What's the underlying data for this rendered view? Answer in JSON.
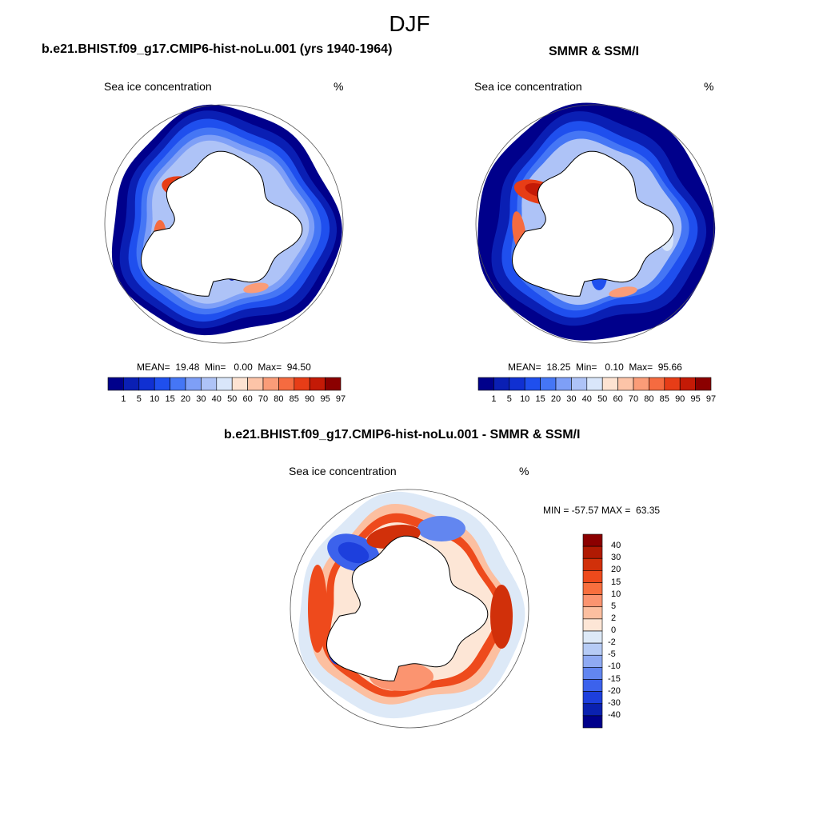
{
  "figure": {
    "title": "DJF"
  },
  "panels": [
    {
      "id": "model",
      "title": "b.e21.BHIST.f09_g17.CMIP6-hist-noLu.001 (yrs 1940-1964)",
      "subtitle_left": "Sea ice concentration",
      "subtitle_right": "%",
      "stats_text": "MEAN=  19.48  Min=   0.00  Max=  94.50"
    },
    {
      "id": "obs",
      "title": "SMMR & SSM/I",
      "subtitle_left": "Sea ice concentration",
      "subtitle_right": "%",
      "stats_text": "MEAN=  18.25  Min=   0.10  Max=  95.66"
    },
    {
      "id": "diff",
      "title": "b.e21.BHIST.f09_g17.CMIP6-hist-noLu.001 - SMMR & SSM/I",
      "subtitle_left": "Sea ice concentration",
      "subtitle_right": "%",
      "stats_text": "MIN = -57.57 MAX =  63.35"
    }
  ],
  "chart_data": [
    {
      "type": "map",
      "title": "b.e21.BHIST.f09_g17.CMIP6-hist-noLu.001 (yrs 1940-1964)",
      "variable": "Sea ice concentration",
      "units": "%",
      "projection": "south polar stereographic",
      "stats": {
        "mean": 19.48,
        "min": 0.0,
        "max": 94.5
      },
      "colorbar": {
        "orientation": "horizontal",
        "levels": [
          1,
          5,
          10,
          15,
          20,
          30,
          40,
          50,
          60,
          70,
          80,
          85,
          90,
          95,
          97
        ],
        "colors": [
          "#00008b",
          "#0a1fb4",
          "#1030d2",
          "#1f4fee",
          "#4576f5",
          "#7e9ff7",
          "#aec3f7",
          "#d9e6fa",
          "#fde3d2",
          "#fcc4a8",
          "#fa9c78",
          "#f56b40",
          "#e73d17",
          "#c41a06",
          "#8b0000"
        ]
      }
    },
    {
      "type": "map",
      "title": "SMMR & SSM/I",
      "variable": "Sea ice concentration",
      "units": "%",
      "projection": "south polar stereographic",
      "stats": {
        "mean": 18.25,
        "min": 0.1,
        "max": 95.66
      },
      "colorbar": {
        "orientation": "horizontal",
        "levels": [
          1,
          5,
          10,
          15,
          20,
          30,
          40,
          50,
          60,
          70,
          80,
          85,
          90,
          95,
          97
        ],
        "colors": [
          "#00008b",
          "#0a1fb4",
          "#1030d2",
          "#1f4fee",
          "#4576f5",
          "#7e9ff7",
          "#aec3f7",
          "#d9e6fa",
          "#fde3d2",
          "#fcc4a8",
          "#fa9c78",
          "#f56b40",
          "#e73d17",
          "#c41a06",
          "#8b0000"
        ]
      }
    },
    {
      "type": "map",
      "title": "b.e21.BHIST.f09_g17.CMIP6-hist-noLu.001 - SMMR & SSM/I",
      "variable": "Sea ice concentration",
      "units": "%",
      "projection": "south polar stereographic",
      "stats": {
        "min": -57.57,
        "max": 63.35
      },
      "colorbar": {
        "orientation": "vertical",
        "levels": [
          40,
          30,
          20,
          15,
          10,
          5,
          2,
          0,
          -2,
          -5,
          -10,
          -15,
          -20,
          -30,
          -40
        ],
        "colors": [
          "#8b0000",
          "#b01a03",
          "#d1300a",
          "#ee4a1c",
          "#f86f3e",
          "#fb9470",
          "#fcbfa0",
          "#fde6d6",
          "#dde9f7",
          "#b6cbf5",
          "#8faaf3",
          "#6286f0",
          "#3c62ec",
          "#1d3fdd",
          "#0a21b0",
          "#00008b"
        ]
      }
    }
  ]
}
